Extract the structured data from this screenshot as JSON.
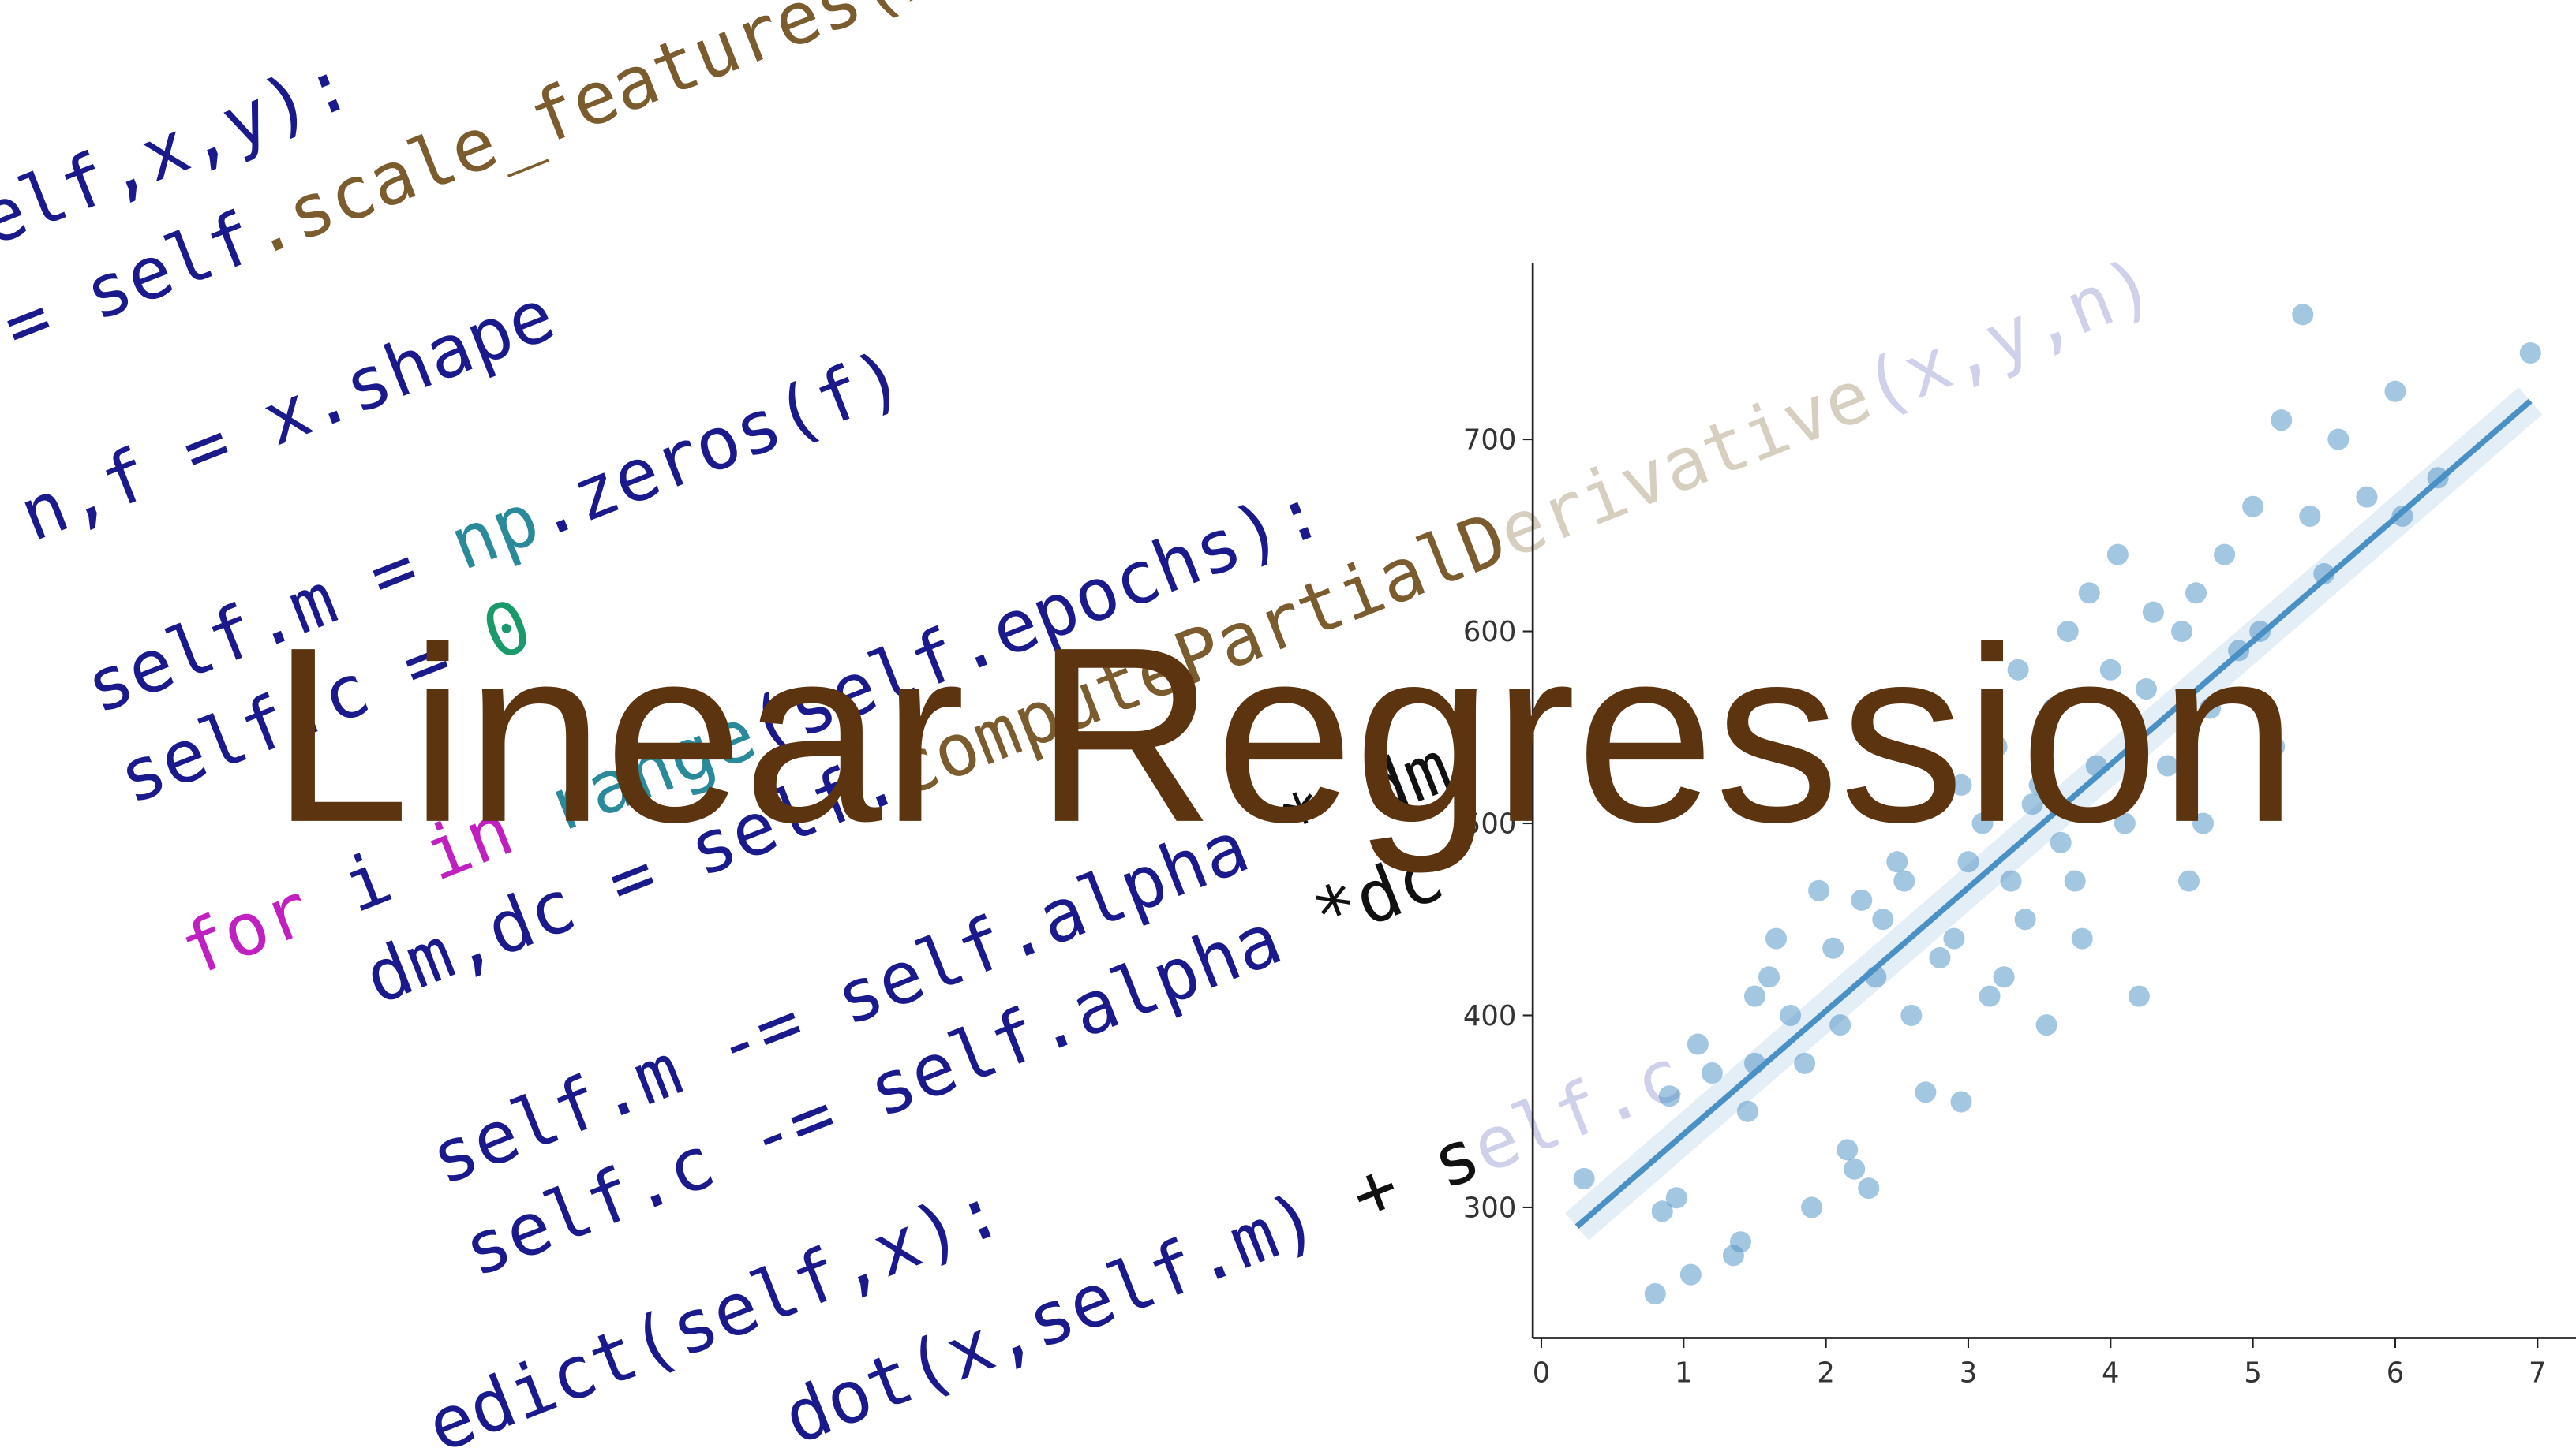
{
  "title": "Linear Regression",
  "code": [
    [
      {
        "text": "elf,x,y):",
        "color": "#1a1a8c"
      }
    ],
    [
      {
        "text": "= ",
        "color": "#1a1a8c"
      },
      {
        "text": "self",
        "color": "#1a1a8c"
      },
      {
        "text": ".scale_features(x)",
        "color": "#7a5c2e"
      }
    ],
    [
      {
        "text": "n,f = x.shape",
        "color": "#1a1a8c"
      }
    ],
    [
      {
        "text": "self.m = ",
        "color": "#1a1a8c"
      },
      {
        "text": "np",
        "color": "#2a8a9a"
      },
      {
        "text": ".zeros(f)",
        "color": "#1a1a8c"
      }
    ],
    [
      {
        "text": "self.c = ",
        "color": "#1a1a8c"
      },
      {
        "text": "0",
        "color": "#1a9a6a"
      }
    ],
    [
      {
        "text": "for",
        "color": "#c020c0"
      },
      {
        "text": " i ",
        "color": "#1a1a8c"
      },
      {
        "text": "in",
        "color": "#c020c0"
      },
      {
        "text": " range",
        "color": "#2a8a9a"
      },
      {
        "text": "(self.epochs):",
        "color": "#1a1a8c"
      }
    ],
    [
      {
        "text": "dm,dc = self.",
        "color": "#1a1a8c"
      },
      {
        "text": "computePartialD",
        "color": "#7a5c2e"
      },
      {
        "text": "erivative",
        "color": "#d6cfc0"
      },
      {
        "text": "(x,y,n)",
        "color": "#cfd0ea"
      }
    ],
    [
      {
        "text": "self.m -= self.alpha ",
        "color": "#1a1a8c"
      },
      {
        "text": "* dm",
        "color": "#111111"
      }
    ],
    [
      {
        "text": "self.c -= self.alpha ",
        "color": "#1a1a8c"
      },
      {
        "text": "*dc",
        "color": "#111111"
      }
    ],
    [
      {
        "text": "edict(self,x):",
        "color": "#1a1a8c"
      }
    ],
    [
      {
        "text": "dot(x,self.m) ",
        "color": "#1a1a8c"
      },
      {
        "text": "+ s",
        "color": "#111111"
      },
      {
        "text": "elf.c",
        "color": "#cfd0ea"
      }
    ]
  ],
  "chart_data": {
    "type": "scatter",
    "color": "#4a90c4",
    "x": [
      0.3,
      0.8,
      0.85,
      0.95,
      0.9,
      1.05,
      1.1,
      1.2,
      1.35,
      1.4,
      1.45,
      1.5,
      1.6,
      1.65,
      1.75,
      1.85,
      1.9,
      1.95,
      2.05,
      2.1,
      2.15,
      2.2,
      2.3,
      2.35,
      2.4,
      2.5,
      2.55,
      2.6,
      2.7,
      2.8,
      2.9,
      2.95,
      3.0,
      3.1,
      3.15,
      3.2,
      3.3,
      3.35,
      3.4,
      3.5,
      3.55,
      3.6,
      3.7,
      3.75,
      3.8,
      3.9,
      4.0,
      4.05,
      4.1,
      4.2,
      4.25,
      4.3,
      4.4,
      4.5,
      4.6,
      4.65,
      4.7,
      4.8,
      4.9,
      5.0,
      5.05,
      5.15,
      5.2,
      5.35,
      5.4,
      5.5,
      5.6,
      5.8,
      6.0,
      6.05,
      6.3,
      6.95,
      3.25,
      3.45,
      2.25,
      3.85,
      4.55,
      2.95,
      3.65,
      1.5
    ],
    "values": [
      315,
      255,
      298,
      305,
      358,
      265,
      385,
      370,
      275,
      282,
      350,
      375,
      420,
      440,
      400,
      375,
      300,
      465,
      435,
      395,
      330,
      320,
      310,
      420,
      450,
      480,
      470,
      400,
      360,
      430,
      440,
      355,
      480,
      500,
      410,
      540,
      470,
      580,
      450,
      520,
      395,
      560,
      600,
      470,
      440,
      530,
      580,
      640,
      500,
      410,
      570,
      610,
      530,
      600,
      620,
      500,
      560,
      640,
      590,
      665,
      600,
      540,
      710,
      765,
      660,
      630,
      700,
      670,
      725,
      660,
      680,
      745,
      420,
      510,
      460,
      620,
      470,
      520,
      490,
      410
    ],
    "fit": {
      "x": [
        0.25,
        6.95
      ],
      "values": [
        290,
        720
      ]
    },
    "xlim": [
      -0.06,
      7.27
    ],
    "ylim": [
      232,
      792
    ],
    "xticks": [
      0,
      1,
      2,
      3,
      4,
      5,
      6,
      7
    ],
    "yticks": [
      300,
      400,
      500,
      600,
      700
    ]
  }
}
